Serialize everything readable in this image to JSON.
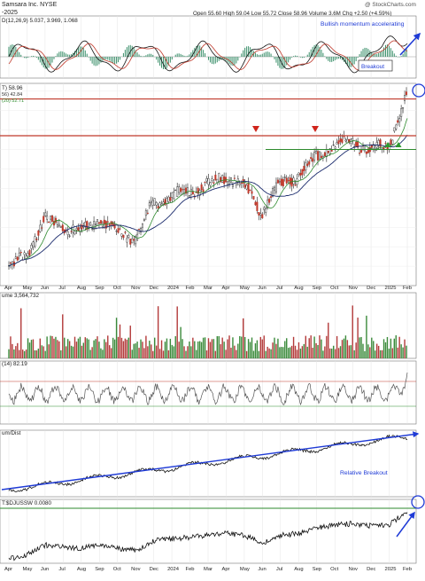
{
  "header": {
    "company": "Samsara Inc. NYSE",
    "watermark": "@ StockCharts.com",
    "date": "-2025",
    "quote": "Open 55.60  High 59.04  Low 55.72  Close 58.96  Volume 3.6M  Chg +2.50 (+4.59%)"
  },
  "panels": {
    "macd": {
      "label": "D(12,26,9) 5.037, 3.969, 1.068",
      "annotation": "Bullish momentum accelerating"
    },
    "price": {
      "label": "T) 58.96",
      "ma50_label": "56) 42.84",
      "ma200_label": "(20) 52.71",
      "breakout_label": "Breakout",
      "resistance": 58.0,
      "support": 45.0
    },
    "volume": {
      "label": "ume 3,564,732"
    },
    "rsi": {
      "label": "(14) 82.19"
    },
    "perf": {
      "label": "um/Dist",
      "annotation": "Relative Breakout"
    },
    "ratio": {
      "label": "T:$DJUSSW 0.0080"
    }
  },
  "chart_data": {
    "type": "line",
    "x_axis_labels": [
      "Apr",
      "May",
      "Jun",
      "Jul",
      "Aug",
      "Sep",
      "Oct",
      "Nov",
      "Dec",
      "2024",
      "Feb",
      "Mar",
      "Apr",
      "May",
      "Jun",
      "Jul",
      "Aug",
      "Sep",
      "Oct",
      "Nov",
      "Dec",
      "2025",
      "Feb"
    ],
    "price_series": {
      "x": [
        "2023-04",
        "2023-05",
        "2023-06",
        "2023-07",
        "2023-08",
        "2023-09",
        "2023-10",
        "2023-11",
        "2023-12",
        "2024-01",
        "2024-02",
        "2024-03",
        "2024-04",
        "2024-05",
        "2024-06",
        "2024-07",
        "2024-08",
        "2024-09",
        "2024-10",
        "2024-11",
        "2024-12",
        "2025-01",
        "2025-02"
      ],
      "values": [
        14,
        18,
        27,
        25,
        24,
        27,
        24,
        22,
        31,
        33,
        34,
        36,
        38,
        36,
        29,
        36,
        38,
        43,
        46,
        47,
        45,
        46,
        59
      ]
    },
    "price_ticks": []
  }
}
